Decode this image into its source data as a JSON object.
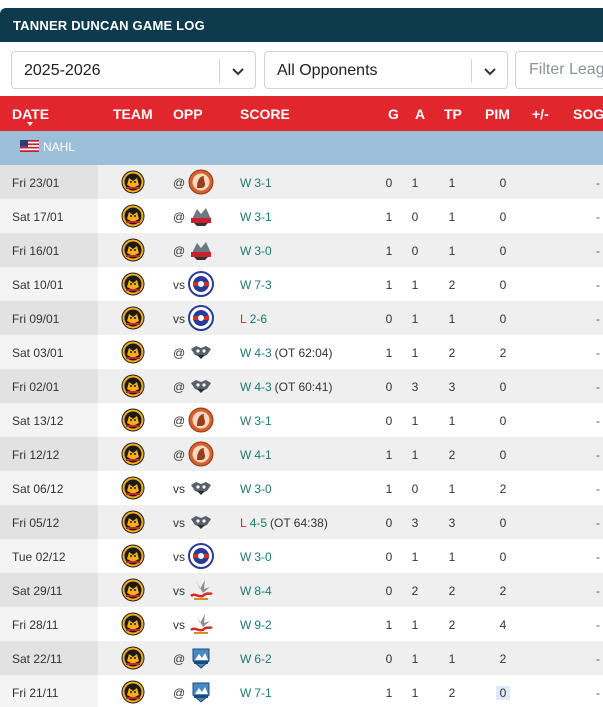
{
  "title": "TANNER DUNCAN GAME LOG",
  "filters": {
    "season": "2025-2026",
    "opponent": "All Opponents",
    "league_placeholder": "Filter League..."
  },
  "columns": {
    "date": "DATE",
    "team": "TEAM",
    "opp": "OPP",
    "score": "SCORE",
    "g": "G",
    "a": "A",
    "tp": "TP",
    "pim": "PIM",
    "pm": "+/-",
    "sog": "SOG"
  },
  "league": "NAHL",
  "games": [
    {
      "date": "Fri 23/01",
      "ha": "@",
      "opp_logo": "spartan-logo-orange",
      "result": "W",
      "score": "3-1",
      "ot": "",
      "g": "0",
      "a": "1",
      "tp": "1",
      "pim": "0",
      "sog": "-"
    },
    {
      "date": "Sat 17/01",
      "ha": "@",
      "opp_logo": "wild-mascot-logo",
      "result": "W",
      "score": "3-1",
      "ot": "",
      "g": "1",
      "a": "0",
      "tp": "1",
      "pim": "0",
      "sog": "-"
    },
    {
      "date": "Fri 16/01",
      "ha": "@",
      "opp_logo": "wild-mascot-logo",
      "result": "W",
      "score": "3-0",
      "ot": "",
      "g": "1",
      "a": "0",
      "tp": "1",
      "pim": "0",
      "sog": "-"
    },
    {
      "date": "Sat 10/01",
      "ha": "vs",
      "opp_logo": "round-blue-red-logo",
      "result": "W",
      "score": "7-3",
      "ot": "",
      "g": "1",
      "a": "1",
      "tp": "2",
      "pim": "0",
      "sog": "-"
    },
    {
      "date": "Fri 09/01",
      "ha": "vs",
      "opp_logo": "round-blue-red-logo",
      "result": "L",
      "score": "2-6",
      "ot": "",
      "g": "0",
      "a": "1",
      "tp": "1",
      "pim": "0",
      "sog": "-"
    },
    {
      "date": "Sat 03/01",
      "ha": "@",
      "opp_logo": "grey-shield-logo",
      "result": "W",
      "score": "4-3",
      "ot": "(OT 62:04)",
      "g": "1",
      "a": "1",
      "tp": "2",
      "pim": "2",
      "sog": "-"
    },
    {
      "date": "Fri 02/01",
      "ha": "@",
      "opp_logo": "grey-shield-logo",
      "result": "W",
      "score": "4-3",
      "ot": "(OT 60:41)",
      "g": "0",
      "a": "3",
      "tp": "3",
      "pim": "0",
      "sog": "-"
    },
    {
      "date": "Sat 13/12",
      "ha": "@",
      "opp_logo": "spartan-logo-orange",
      "result": "W",
      "score": "3-1",
      "ot": "",
      "g": "0",
      "a": "1",
      "tp": "1",
      "pim": "0",
      "sog": "-"
    },
    {
      "date": "Fri 12/12",
      "ha": "@",
      "opp_logo": "spartan-logo-orange",
      "result": "W",
      "score": "4-1",
      "ot": "",
      "g": "1",
      "a": "1",
      "tp": "2",
      "pim": "0",
      "sog": "-"
    },
    {
      "date": "Sat 06/12",
      "ha": "vs",
      "opp_logo": "grey-shield-logo",
      "result": "W",
      "score": "3-0",
      "ot": "",
      "g": "1",
      "a": "0",
      "tp": "1",
      "pim": "2",
      "sog": "-"
    },
    {
      "date": "Fri 05/12",
      "ha": "vs",
      "opp_logo": "grey-shield-logo",
      "result": "L",
      "score": "4-5",
      "ot": "(OT 64:38)",
      "g": "0",
      "a": "3",
      "tp": "3",
      "pim": "0",
      "sog": "-"
    },
    {
      "date": "Tue 02/12",
      "ha": "vs",
      "opp_logo": "round-blue-red-logo",
      "result": "W",
      "score": "3-0",
      "ot": "",
      "g": "0",
      "a": "1",
      "tp": "1",
      "pim": "0",
      "sog": "-"
    },
    {
      "date": "Sat 29/11",
      "ha": "vs",
      "opp_logo": "red-script-logo",
      "result": "W",
      "score": "8-4",
      "ot": "",
      "g": "0",
      "a": "2",
      "tp": "2",
      "pim": "2",
      "sog": "-"
    },
    {
      "date": "Fri 28/11",
      "ha": "vs",
      "opp_logo": "red-script-logo",
      "result": "W",
      "score": "9-2",
      "ot": "",
      "g": "1",
      "a": "1",
      "tp": "2",
      "pim": "4",
      "sog": "-"
    },
    {
      "date": "Sat 22/11",
      "ha": "@",
      "opp_logo": "blue-mountain-logo",
      "result": "W",
      "score": "6-2",
      "ot": "",
      "g": "0",
      "a": "1",
      "tp": "1",
      "pim": "2",
      "sog": "-"
    },
    {
      "date": "Fri 21/11",
      "ha": "@",
      "opp_logo": "blue-mountain-logo",
      "result": "W",
      "score": "7-1",
      "ot": "",
      "g": "1",
      "a": "1",
      "tp": "2",
      "pim": "0",
      "sog": "-"
    }
  ],
  "colors": {
    "title_bg": "#0e3a4d",
    "header_bg": "#e2262d",
    "league_bg": "#9dbed8",
    "win": "#1e7a6e",
    "loss": "#d62828"
  }
}
